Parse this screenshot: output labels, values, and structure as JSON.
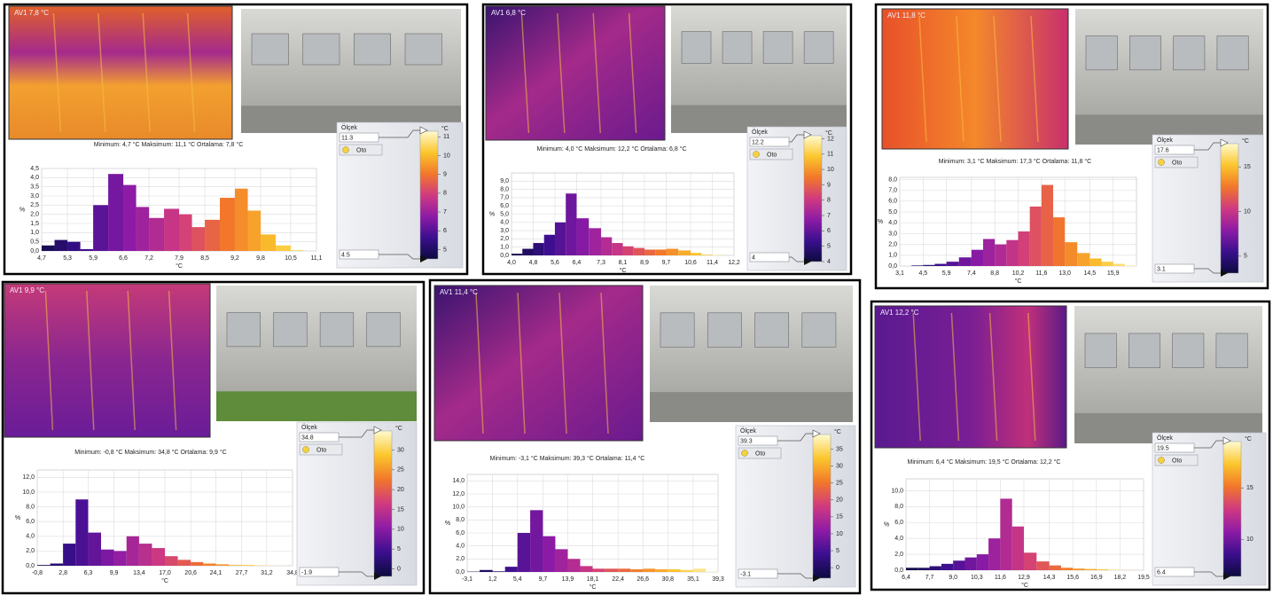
{
  "chart_data": [
    {
      "type": "histogram",
      "thermal_label": "AV1 7,8 °C",
      "stats": "Minimum: 4,7 °C Maksimum: 11,1 °C Ortalama: 7,8 °C",
      "xlabel": "°C",
      "ylabel": "%",
      "grid": true,
      "bins": [
        4.7,
        5.0,
        5.3,
        5.6,
        5.9,
        6.25,
        6.6,
        6.9,
        7.2,
        7.55,
        7.9,
        8.2,
        8.5,
        8.85,
        9.2,
        9.5,
        9.8,
        10.15,
        10.5,
        10.8,
        11.1
      ],
      "values": [
        0.3,
        0.6,
        0.5,
        0.1,
        2.5,
        4.2,
        3.6,
        2.4,
        1.8,
        2.3,
        2.0,
        1.3,
        1.7,
        2.9,
        3.4,
        2.2,
        0.9,
        0.3,
        0.05,
        0
      ],
      "xlim": [
        4.7,
        11.1
      ],
      "ylim": [
        0,
        4.5
      ],
      "xticks": [
        {
          "value": 4.7,
          "label": "4,7"
        },
        {
          "value": 5.3,
          "label": "5,3"
        },
        {
          "value": 5.9,
          "label": "5,9"
        },
        {
          "value": 6.6,
          "label": "6,6"
        },
        {
          "value": 7.2,
          "label": "7,2"
        },
        {
          "value": 7.9,
          "label": "7,9"
        },
        {
          "value": 8.5,
          "label": "8,5"
        },
        {
          "value": 9.2,
          "label": "9,2"
        },
        {
          "value": 9.8,
          "label": "9,8"
        },
        {
          "value": 10.5,
          "label": "10,5"
        },
        {
          "value": 11.1,
          "label": "11,1"
        }
      ],
      "yticks": [
        {
          "value": 0,
          "label": "0,0"
        },
        {
          "value": 0.5,
          "label": "0,5"
        },
        {
          "value": 1,
          "label": "1,0"
        },
        {
          "value": 1.5,
          "label": "1,5"
        },
        {
          "value": 2,
          "label": "2,0"
        },
        {
          "value": 2.5,
          "label": "2,5"
        },
        {
          "value": 3,
          "label": "3,0"
        },
        {
          "value": 3.5,
          "label": "3,5"
        },
        {
          "value": 4,
          "label": "4,0"
        },
        {
          "value": 4.5,
          "label": "4,5"
        }
      ],
      "scale": {
        "title": "Ölçek",
        "unit": "°C",
        "button": "Oto",
        "clim": [
          4.5,
          11.3
        ],
        "ticks": [
          5,
          6,
          7,
          8,
          9,
          10,
          11
        ],
        "colormap": [
          "#0c0a3e",
          "#3b0f8f",
          "#8e1ba6",
          "#d03a80",
          "#f2772a",
          "#fbc62c",
          "#fffbd0"
        ]
      }
    },
    {
      "type": "histogram",
      "thermal_label": "AV1 6,8 °C",
      "stats": "Minimum: 4,0 °C Maksimum: 12,2 °C Ortalama: 6,8 °C",
      "xlabel": "°C",
      "ylabel": "%",
      "grid": true,
      "bins": [
        4.0,
        4.4,
        4.8,
        5.2,
        5.6,
        6.0,
        6.4,
        6.85,
        7.3,
        7.7,
        8.1,
        8.5,
        8.9,
        9.3,
        9.7,
        10.15,
        10.6,
        11.0,
        11.4,
        11.8,
        12.2
      ],
      "values": [
        0.2,
        0.8,
        1.5,
        2.5,
        4.0,
        7.5,
        4.5,
        3.3,
        2.2,
        1.5,
        1.1,
        0.9,
        0.7,
        0.7,
        0.8,
        0.6,
        0.3,
        0.1,
        0.05,
        0
      ],
      "xlim": [
        4.0,
        12.2
      ],
      "ylim": [
        0,
        10
      ],
      "xticks": [
        {
          "value": 4.0,
          "label": "4,0"
        },
        {
          "value": 4.8,
          "label": "4,8"
        },
        {
          "value": 5.6,
          "label": "5,6"
        },
        {
          "value": 6.4,
          "label": "6,4"
        },
        {
          "value": 7.3,
          "label": "7,3"
        },
        {
          "value": 8.1,
          "label": "8,1"
        },
        {
          "value": 8.9,
          "label": "8,9"
        },
        {
          "value": 9.7,
          "label": "9,7"
        },
        {
          "value": 10.6,
          "label": "10,6"
        },
        {
          "value": 11.4,
          "label": "11,4"
        },
        {
          "value": 12.2,
          "label": "12,2"
        }
      ],
      "yticks": [
        {
          "value": 0,
          "label": "0,0"
        },
        {
          "value": 1,
          "label": "1,0"
        },
        {
          "value": 2,
          "label": "2,0"
        },
        {
          "value": 3,
          "label": "3,0"
        },
        {
          "value": 4,
          "label": "4,0"
        },
        {
          "value": 5,
          "label": "5,0"
        },
        {
          "value": 6,
          "label": "6,0"
        },
        {
          "value": 7,
          "label": "7,0"
        },
        {
          "value": 8,
          "label": "8,0"
        },
        {
          "value": 9,
          "label": "9,0"
        }
      ],
      "scale": {
        "title": "Ölçek",
        "unit": "°C",
        "button": "Oto",
        "clim": [
          4.0,
          12.2
        ],
        "ticks": [
          4,
          5,
          6,
          7,
          8,
          9,
          10,
          11,
          12
        ],
        "colormap": [
          "#0c0a3e",
          "#3b0f8f",
          "#8e1ba6",
          "#d03a80",
          "#f2772a",
          "#fbc62c",
          "#fffbd0"
        ]
      }
    },
    {
      "type": "histogram",
      "thermal_label": "AV1 11,8 °C",
      "stats": "Minimum: 3,1 °C Maksimum: 17,3 °C Ortalama: 11,8 °C",
      "xlabel": "°C",
      "ylabel": "%",
      "grid": true,
      "bins": [
        3.1,
        3.8,
        4.5,
        5.2,
        5.9,
        6.65,
        7.4,
        8.1,
        8.8,
        9.5,
        10.2,
        10.9,
        11.6,
        12.3,
        13.0,
        13.75,
        14.5,
        15.2,
        15.9,
        16.6,
        17.3
      ],
      "values": [
        0,
        0.05,
        0.1,
        0.2,
        0.4,
        0.8,
        1.5,
        2.5,
        2.0,
        2.4,
        3.2,
        5.5,
        7.5,
        4.5,
        2.2,
        1.2,
        0.7,
        0.4,
        0.2,
        0.05
      ],
      "xlim": [
        3.1,
        17.3
      ],
      "ylim": [
        0,
        8.2
      ],
      "xticks": [
        {
          "value": 3.1,
          "label": "3,1"
        },
        {
          "value": 4.5,
          "label": "4,5"
        },
        {
          "value": 5.9,
          "label": "5,9"
        },
        {
          "value": 7.4,
          "label": "7,4"
        },
        {
          "value": 8.8,
          "label": "8,8"
        },
        {
          "value": 10.2,
          "label": "10,2"
        },
        {
          "value": 11.6,
          "label": "11,6"
        },
        {
          "value": 13.0,
          "label": "13,0"
        },
        {
          "value": 14.5,
          "label": "14,5"
        },
        {
          "value": 15.9,
          "label": "15,9"
        }
      ],
      "yticks": [
        {
          "value": 0,
          "label": "0,0"
        },
        {
          "value": 1,
          "label": "1,0"
        },
        {
          "value": 2,
          "label": "2,0"
        },
        {
          "value": 3,
          "label": "3,0"
        },
        {
          "value": 4,
          "label": "4,0"
        },
        {
          "value": 5,
          "label": "5,0"
        },
        {
          "value": 6,
          "label": "6,0"
        },
        {
          "value": 7,
          "label": "7,0"
        },
        {
          "value": 8,
          "label": "8,0"
        }
      ],
      "scale": {
        "title": "Ölçek",
        "unit": "°C",
        "button": "Oto",
        "clim": [
          3.1,
          17.6
        ],
        "ticks": [
          5,
          10,
          15
        ],
        "colormap": [
          "#0c0a3e",
          "#3b0f8f",
          "#8e1ba6",
          "#d03a80",
          "#f2772a",
          "#fbc62c",
          "#fffbd0"
        ]
      }
    },
    {
      "type": "histogram",
      "thermal_label": "AV1 9,9 °C",
      "stats": "Minimum: -0,8 °C Maksimum: 34,8 °C Ortalama: 9,9 °C",
      "xlabel": "°C",
      "ylabel": "%",
      "grid": true,
      "bins": [
        -0.8,
        1.0,
        2.8,
        4.55,
        6.3,
        8.1,
        9.9,
        11.65,
        13.4,
        15.2,
        17.0,
        18.8,
        20.6,
        22.35,
        24.1,
        25.9,
        27.7,
        29.45,
        31.2,
        33.0,
        34.8
      ],
      "values": [
        0.1,
        0.3,
        3.0,
        9.0,
        4.5,
        2.2,
        2.0,
        4.0,
        3.0,
        2.4,
        1.3,
        0.8,
        0.5,
        0.3,
        0.2,
        0.1,
        0.1,
        0.05,
        0.02,
        0
      ],
      "xlim": [
        -0.8,
        34.8
      ],
      "ylim": [
        0,
        13
      ],
      "xticks": [
        {
          "value": -0.8,
          "label": "-0,8"
        },
        {
          "value": 2.8,
          "label": "2,8"
        },
        {
          "value": 6.3,
          "label": "6,3"
        },
        {
          "value": 9.9,
          "label": "9,9"
        },
        {
          "value": 13.4,
          "label": "13,4"
        },
        {
          "value": 17.0,
          "label": "17,0"
        },
        {
          "value": 20.6,
          "label": "20,6"
        },
        {
          "value": 24.1,
          "label": "24,1"
        },
        {
          "value": 27.7,
          "label": "27,7"
        },
        {
          "value": 31.2,
          "label": "31,2"
        },
        {
          "value": 34.8,
          "label": "34,8"
        }
      ],
      "yticks": [
        {
          "value": 0,
          "label": "0,0"
        },
        {
          "value": 2,
          "label": "2,0"
        },
        {
          "value": 4,
          "label": "4,0"
        },
        {
          "value": 6,
          "label": "6,0"
        },
        {
          "value": 8,
          "label": "8,0"
        },
        {
          "value": 10,
          "label": "10,0"
        },
        {
          "value": 12,
          "label": "12,0"
        }
      ],
      "scale": {
        "title": "Ölçek",
        "unit": "°C",
        "button": "Oto",
        "clim": [
          -1.9,
          34.8
        ],
        "ticks": [
          0,
          5,
          10,
          15,
          20,
          25,
          30
        ],
        "colormap": [
          "#0c0a3e",
          "#3b0f8f",
          "#8e1ba6",
          "#d03a80",
          "#f2772a",
          "#fbc62c",
          "#fffbd0"
        ]
      }
    },
    {
      "type": "histogram",
      "thermal_label": "AV1 11,4 °C",
      "stats": "Minimum: -3,1 °C Maksimum: 39,3 °C Ortalama: 11,4 °C",
      "xlabel": "°C",
      "ylabel": "%",
      "grid": true,
      "bins": [
        -3.1,
        -1.0,
        1.2,
        3.3,
        5.4,
        7.55,
        9.7,
        11.8,
        13.9,
        16.0,
        18.1,
        20.25,
        22.4,
        24.5,
        26.6,
        28.7,
        30.8,
        32.95,
        35.1,
        37.2,
        39.3
      ],
      "values": [
        0.05,
        0.3,
        0.1,
        0.8,
        6.0,
        9.5,
        5.5,
        3.5,
        2.0,
        0.9,
        0.5,
        0.5,
        0.5,
        0.4,
        0.5,
        0.4,
        0.4,
        0.3,
        0.5,
        0.05
      ],
      "xlim": [
        -3.1,
        39.3
      ],
      "ylim": [
        0,
        15
      ],
      "xticks": [
        {
          "value": -3.1,
          "label": "-3,1"
        },
        {
          "value": 1.2,
          "label": "1,2"
        },
        {
          "value": 5.4,
          "label": "5,4"
        },
        {
          "value": 9.7,
          "label": "9,7"
        },
        {
          "value": 13.9,
          "label": "13,9"
        },
        {
          "value": 18.1,
          "label": "18,1"
        },
        {
          "value": 22.4,
          "label": "22,4"
        },
        {
          "value": 26.6,
          "label": "26,6"
        },
        {
          "value": 30.8,
          "label": "30,8"
        },
        {
          "value": 35.1,
          "label": "35,1"
        },
        {
          "value": 39.3,
          "label": "39,3"
        }
      ],
      "yticks": [
        {
          "value": 0,
          "label": "0,0"
        },
        {
          "value": 2,
          "label": "2,0"
        },
        {
          "value": 4,
          "label": "4,0"
        },
        {
          "value": 6,
          "label": "6,0"
        },
        {
          "value": 8,
          "label": "8,0"
        },
        {
          "value": 10,
          "label": "10,0"
        },
        {
          "value": 12,
          "label": "12,0"
        },
        {
          "value": 14,
          "label": "14,0"
        }
      ],
      "scale": {
        "title": "Ölçek",
        "unit": "°C",
        "button": "Oto",
        "clim": [
          -3.1,
          39.3
        ],
        "ticks": [
          0,
          5,
          10,
          15,
          20,
          25,
          30,
          35
        ],
        "colormap": [
          "#0c0a3e",
          "#3b0f8f",
          "#8e1ba6",
          "#d03a80",
          "#f2772a",
          "#fbc62c",
          "#fffbd0"
        ]
      }
    },
    {
      "type": "histogram",
      "thermal_label": "AV1 12,2 °C",
      "stats": "Minimum: 6,4 °C Maksimum: 19,5 °C Ortalama: 12,2 °C",
      "xlabel": "°C",
      "ylabel": "%",
      "grid": true,
      "bins": [
        6.4,
        7.05,
        7.7,
        8.35,
        9.0,
        9.65,
        10.3,
        10.95,
        11.6,
        12.25,
        12.9,
        13.6,
        14.3,
        14.95,
        15.6,
        16.25,
        16.9,
        17.55,
        18.2,
        18.85,
        19.5
      ],
      "values": [
        0.3,
        0.3,
        0.5,
        0.8,
        1.2,
        1.6,
        2.0,
        4.0,
        9.0,
        5.5,
        2.2,
        1.1,
        0.6,
        0.3,
        0.2,
        0.15,
        0.1,
        0.05,
        0.03,
        0
      ],
      "xlim": [
        6.4,
        19.5
      ],
      "ylim": [
        0,
        11.5
      ],
      "xticks": [
        {
          "value": 6.4,
          "label": "6,4"
        },
        {
          "value": 7.7,
          "label": "7,7"
        },
        {
          "value": 9.0,
          "label": "9,0"
        },
        {
          "value": 10.3,
          "label": "10,3"
        },
        {
          "value": 11.6,
          "label": "11,6"
        },
        {
          "value": 12.9,
          "label": "12,9"
        },
        {
          "value": 14.3,
          "label": "14,3"
        },
        {
          "value": 15.6,
          "label": "15,6"
        },
        {
          "value": 16.9,
          "label": "16,9"
        },
        {
          "value": 18.2,
          "label": "18,2"
        },
        {
          "value": 19.5,
          "label": "19,5"
        }
      ],
      "yticks": [
        {
          "value": 0,
          "label": "0,0"
        },
        {
          "value": 2,
          "label": "2,0"
        },
        {
          "value": 4,
          "label": "4,0"
        },
        {
          "value": 6,
          "label": "6,0"
        },
        {
          "value": 8,
          "label": "8,0"
        },
        {
          "value": 10,
          "label": "10,0"
        }
      ],
      "scale": {
        "title": "Ölçek",
        "unit": "°C",
        "button": "Oto",
        "clim": [
          6.4,
          19.5
        ],
        "ticks": [
          10,
          15
        ],
        "colormap": [
          "#0c0a3e",
          "#3b0f8f",
          "#8e1ba6",
          "#d03a80",
          "#f2772a",
          "#fbc62c",
          "#fffbd0"
        ]
      }
    }
  ]
}
